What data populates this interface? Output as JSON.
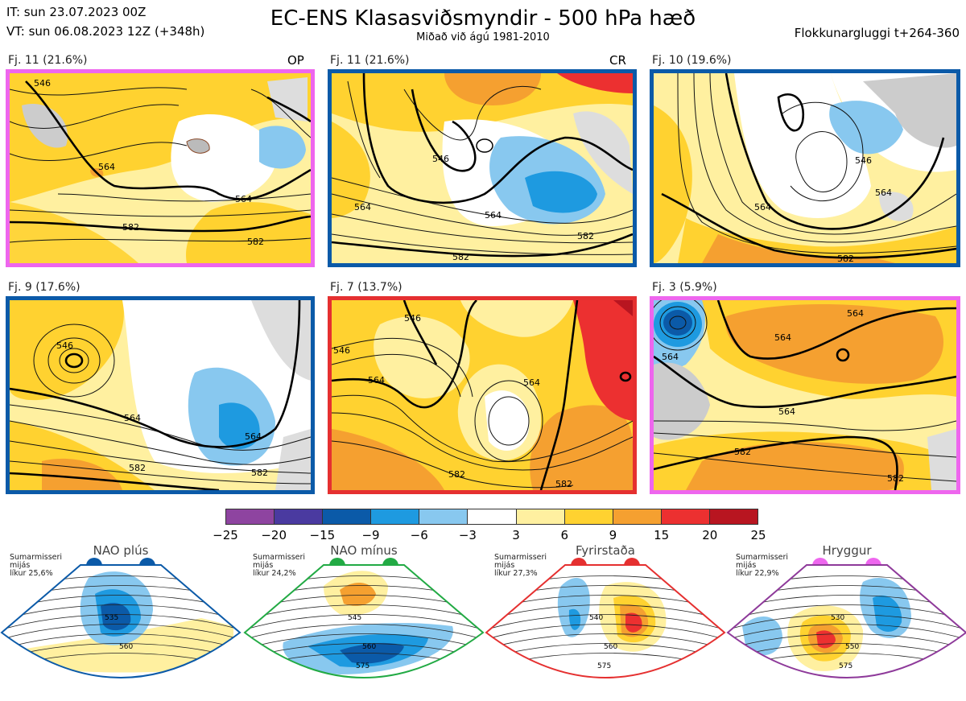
{
  "header": {
    "it": "IT: sun 23.07.2023 00Z",
    "vt": "VT: sun 06.08.2023 12Z  (+348h)",
    "title": "EC-ENS Klasasviðsmyndir - 500 hPa hæð",
    "subtitle": "Miðað við ágú 1981-2010",
    "window": "Flokkunargluggi t+264-360"
  },
  "panels": [
    {
      "label": "Fj. 11 (21.6%)",
      "tag": "OP",
      "frame_color": "#ee66ee",
      "contours": [
        "546",
        "564",
        "564",
        "582",
        "582"
      ]
    },
    {
      "label": "Fj. 11 (21.6%)",
      "tag": "CR",
      "frame_color": "#0b5aa8",
      "contours": [
        "546",
        "564",
        "564",
        "582",
        "582"
      ]
    },
    {
      "label": "Fj. 10 (19.6%)",
      "tag": "",
      "frame_color": "#0b5aa8",
      "contours": [
        "546",
        "564",
        "564",
        "582"
      ]
    },
    {
      "label": "Fj. 9 (17.6%)",
      "tag": "",
      "frame_color": "#0b5aa8",
      "contours": [
        "546",
        "564",
        "564",
        "582",
        "582"
      ]
    },
    {
      "label": "Fj. 7 (13.7%)",
      "tag": "",
      "frame_color": "#e53030",
      "contours": [
        "546",
        "546",
        "564",
        "564",
        "582",
        "582"
      ]
    },
    {
      "label": "Fj. 3 (5.9%)",
      "tag": "",
      "frame_color": "#ee66ee",
      "contours": [
        "564",
        "564",
        "564",
        "564",
        "582",
        "582"
      ]
    }
  ],
  "colorbar": {
    "colors": [
      "#8e44a0",
      "#4a3aa0",
      "#0b5aa8",
      "#1e9ae0",
      "#88c8ef",
      "#ffffff",
      "#fff0a0",
      "#ffd230",
      "#f5a030",
      "#ec3030",
      "#b81520"
    ],
    "ticks": [
      "−25",
      "−20",
      "−15",
      "−9",
      "−6",
      "−3",
      "3",
      "6",
      "9",
      "15",
      "20",
      "25"
    ]
  },
  "regimes": [
    {
      "name": "NAO plús",
      "season": "Sumarmisseri",
      "mean": "mijás",
      "prob": "líkur 25,6%",
      "dot_color": "#0b5aa8",
      "edge_color": "#0b5aa8",
      "contours": [
        "535",
        "560"
      ]
    },
    {
      "name": "NAO mínus",
      "season": "Sumarmisseri",
      "mean": "mijás",
      "prob": "líkur 24,2%",
      "dot_color": "#22aa44",
      "edge_color": "#22aa44",
      "contours": [
        "545",
        "560",
        "575"
      ]
    },
    {
      "name": "Fyrirstaða",
      "season": "Sumarmisseri",
      "mean": "mijás",
      "prob": "líkur 27,3%",
      "dot_color": "#e53030",
      "edge_color": "#e53030",
      "contours": [
        "540",
        "560",
        "575"
      ]
    },
    {
      "name": "Hryggur",
      "season": "Sumarmisseri",
      "mean": "mijás",
      "prob": "líkur 22,9%",
      "dot_color": "#ee66ee",
      "edge_color": "#8e3a9a",
      "contours": [
        "530",
        "550",
        "575"
      ]
    }
  ]
}
